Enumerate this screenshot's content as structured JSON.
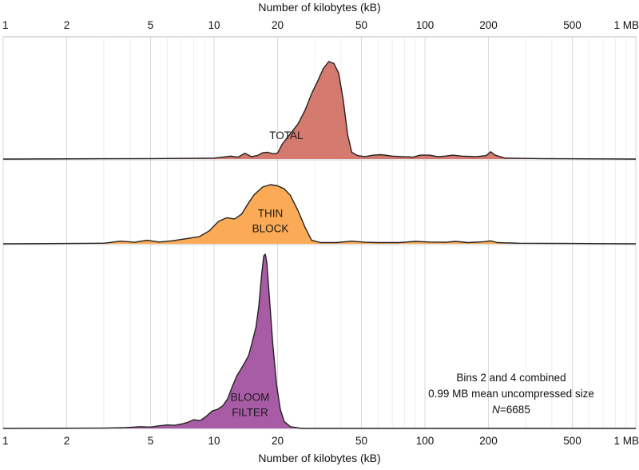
{
  "chart_data": {
    "type": "area",
    "xlabel": "Number of kilobytes (kB)",
    "x_scale": "log",
    "xlim": [
      1,
      1000
    ],
    "x_ticks": [
      {
        "value": 1,
        "label": "1"
      },
      {
        "value": 2,
        "label": "2"
      },
      {
        "value": 5,
        "label": "5"
      },
      {
        "value": 10,
        "label": "10"
      },
      {
        "value": 20,
        "label": "20"
      },
      {
        "value": 50,
        "label": "50"
      },
      {
        "value": 100,
        "label": "100"
      },
      {
        "value": 200,
        "label": "200"
      },
      {
        "value": 500,
        "label": "500"
      },
      {
        "value": 1000,
        "label": "1 MB"
      }
    ],
    "grid": true,
    "series": [
      {
        "name": "TOTAL",
        "label_lines": [
          "TOTAL"
        ],
        "color": "#d47a6e",
        "points": [
          [
            1,
            0.0
          ],
          [
            5,
            0.005
          ],
          [
            10,
            0.01
          ],
          [
            12,
            0.03
          ],
          [
            13,
            0.02
          ],
          [
            14,
            0.06
          ],
          [
            15,
            0.025
          ],
          [
            16,
            0.035
          ],
          [
            17,
            0.065
          ],
          [
            18,
            0.07
          ],
          [
            19,
            0.055
          ],
          [
            20,
            0.06
          ],
          [
            21,
            0.15
          ],
          [
            23,
            0.26
          ],
          [
            25,
            0.36
          ],
          [
            27,
            0.5
          ],
          [
            29,
            0.67
          ],
          [
            31,
            0.8
          ],
          [
            33,
            0.93
          ],
          [
            35,
            1.0
          ],
          [
            37,
            0.98
          ],
          [
            39,
            0.88
          ],
          [
            41,
            0.6
          ],
          [
            43,
            0.25
          ],
          [
            45,
            0.07
          ],
          [
            48,
            0.035
          ],
          [
            52,
            0.025
          ],
          [
            57,
            0.04
          ],
          [
            62,
            0.045
          ],
          [
            70,
            0.03
          ],
          [
            78,
            0.025
          ],
          [
            88,
            0.02
          ],
          [
            95,
            0.04
          ],
          [
            105,
            0.04
          ],
          [
            115,
            0.025
          ],
          [
            125,
            0.03
          ],
          [
            135,
            0.04
          ],
          [
            150,
            0.03
          ],
          [
            175,
            0.025
          ],
          [
            195,
            0.035
          ],
          [
            205,
            0.075
          ],
          [
            215,
            0.04
          ],
          [
            240,
            0.01
          ],
          [
            350,
            0.005
          ],
          [
            1000,
            0.0
          ]
        ]
      },
      {
        "name": "THIN BLOCK",
        "label_lines": [
          "THIN",
          "BLOCK"
        ],
        "color": "#fbaa55",
        "points": [
          [
            1,
            0.0
          ],
          [
            2,
            0.005
          ],
          [
            3,
            0.01
          ],
          [
            3.6,
            0.045
          ],
          [
            4.2,
            0.025
          ],
          [
            4.8,
            0.06
          ],
          [
            5.5,
            0.03
          ],
          [
            6.3,
            0.05
          ],
          [
            7.2,
            0.08
          ],
          [
            8.5,
            0.12
          ],
          [
            9.5,
            0.22
          ],
          [
            10.5,
            0.38
          ],
          [
            11.5,
            0.44
          ],
          [
            12.5,
            0.42
          ],
          [
            13.5,
            0.5
          ],
          [
            14.5,
            0.68
          ],
          [
            15.5,
            0.83
          ],
          [
            17,
            0.96
          ],
          [
            18.5,
            1.0
          ],
          [
            20,
            0.98
          ],
          [
            21.5,
            0.93
          ],
          [
            23,
            0.82
          ],
          [
            25,
            0.56
          ],
          [
            27,
            0.28
          ],
          [
            29,
            0.06
          ],
          [
            32,
            0.02
          ],
          [
            38,
            0.02
          ],
          [
            45,
            0.045
          ],
          [
            52,
            0.025
          ],
          [
            60,
            0.02
          ],
          [
            75,
            0.02
          ],
          [
            90,
            0.04
          ],
          [
            105,
            0.03
          ],
          [
            125,
            0.025
          ],
          [
            140,
            0.04
          ],
          [
            160,
            0.02
          ],
          [
            190,
            0.035
          ],
          [
            205,
            0.05
          ],
          [
            220,
            0.02
          ],
          [
            280,
            0.01
          ],
          [
            500,
            0.005
          ],
          [
            1000,
            0.0
          ]
        ]
      },
      {
        "name": "BLOOM FILTER",
        "label_lines": [
          "BLOOM",
          "FILTER"
        ],
        "color": "#a85ca6",
        "points": [
          [
            1,
            0.0
          ],
          [
            3,
            0.002
          ],
          [
            3.8,
            0.005
          ],
          [
            4.5,
            0.01
          ],
          [
            5,
            0.008
          ],
          [
            5.5,
            0.015
          ],
          [
            6,
            0.02
          ],
          [
            6.5,
            0.018
          ],
          [
            7,
            0.025
          ],
          [
            7.5,
            0.035
          ],
          [
            8,
            0.05
          ],
          [
            8.6,
            0.045
          ],
          [
            9.2,
            0.07
          ],
          [
            9.8,
            0.1
          ],
          [
            10.4,
            0.11
          ],
          [
            11,
            0.13
          ],
          [
            11.6,
            0.17
          ],
          [
            12.2,
            0.24
          ],
          [
            12.8,
            0.3
          ],
          [
            13.4,
            0.34
          ],
          [
            14,
            0.38
          ],
          [
            14.6,
            0.42
          ],
          [
            15.2,
            0.5
          ],
          [
            15.8,
            0.58
          ],
          [
            16.3,
            0.7
          ],
          [
            16.8,
            0.88
          ],
          [
            17.2,
            0.99
          ],
          [
            17.5,
            1.0
          ],
          [
            17.8,
            0.95
          ],
          [
            18.3,
            0.75
          ],
          [
            19,
            0.48
          ],
          [
            19.8,
            0.25
          ],
          [
            20.6,
            0.11
          ],
          [
            21.5,
            0.04
          ],
          [
            23,
            0.01
          ],
          [
            26,
            0.0
          ],
          [
            1000,
            0.0
          ]
        ]
      }
    ],
    "annotation": {
      "line1": "Bins 2 and 4 combined",
      "line2": "0.99 MB mean uncompressed size",
      "n_label": "N",
      "n_value": "=6685"
    }
  }
}
